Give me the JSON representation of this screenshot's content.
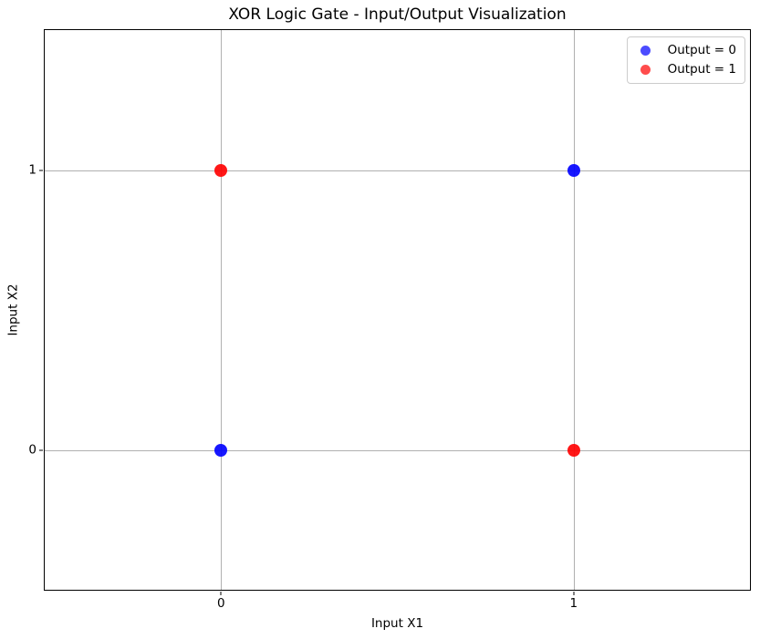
{
  "chart_data": {
    "type": "scatter",
    "title": "XOR Logic Gate - Input/Output Visualization",
    "xlabel": "Input X1",
    "ylabel": "Input X2",
    "xlim": [
      -0.5,
      1.5
    ],
    "ylim": [
      -0.5,
      1.5
    ],
    "x_ticks": [
      "0",
      "1"
    ],
    "y_ticks": [
      "0",
      "1"
    ],
    "grid": true,
    "legend_position": "upper right",
    "series": [
      {
        "name": "Output = 0",
        "color": "#0000ff",
        "points": [
          {
            "x": 0,
            "y": 0
          },
          {
            "x": 1,
            "y": 1
          }
        ]
      },
      {
        "name": "Output = 1",
        "color": "#ff0000",
        "points": [
          {
            "x": 0,
            "y": 1
          },
          {
            "x": 1,
            "y": 0
          }
        ]
      }
    ],
    "style": {
      "grid_color": "#b0b0b0",
      "spine_color": "#000000",
      "background_color": "#ffffff",
      "text_color": "#000000",
      "legend_border_color": "#cccccc"
    }
  }
}
